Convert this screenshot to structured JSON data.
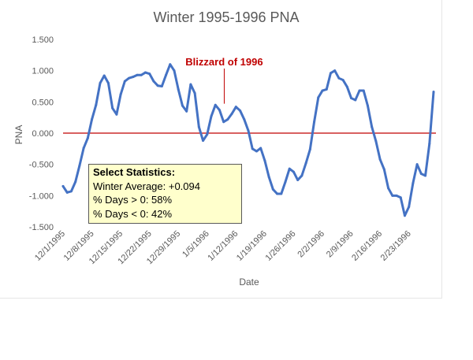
{
  "chart_data": {
    "type": "line",
    "title": "Winter 1995-1996 PNA",
    "xlabel": "Date",
    "ylabel": "PNA",
    "ylim": [
      -1.5,
      1.5
    ],
    "yticks": [
      "1.500",
      "1.000",
      "0.500",
      "0.000",
      "-0.500",
      "-1.000",
      "-1.500"
    ],
    "xticks": [
      "12/1/1995",
      "12/8/1995",
      "12/15/1995",
      "12/22/1995",
      "12/29/1995",
      "1/5/1996",
      "1/12/1996",
      "1/19/1996",
      "1/26/1996",
      "2/2/1996",
      "2/9/1996",
      "2/16/1996",
      "2/23/1996"
    ],
    "grid": "none",
    "reference_line": {
      "y": 0,
      "color": "#c00000"
    },
    "series": [
      {
        "color": "#4472c4",
        "x": [
          "12/1/1995",
          "12/2/1995",
          "12/3/1995",
          "12/4/1995",
          "12/5/1995",
          "12/6/1995",
          "12/7/1995",
          "12/8/1995",
          "12/9/1995",
          "12/10/1995",
          "12/11/1995",
          "12/12/1995",
          "12/13/1995",
          "12/14/1995",
          "12/15/1995",
          "12/16/1995",
          "12/17/1995",
          "12/18/1995",
          "12/19/1995",
          "12/20/1995",
          "12/21/1995",
          "12/22/1995",
          "12/23/1995",
          "12/24/1995",
          "12/25/1995",
          "12/26/1995",
          "12/27/1995",
          "12/28/1995",
          "12/29/1995",
          "12/30/1995",
          "12/31/1995",
          "1/1/1996",
          "1/2/1996",
          "1/3/1996",
          "1/4/1996",
          "1/5/1996",
          "1/6/1996",
          "1/7/1996",
          "1/8/1996",
          "1/9/1996",
          "1/10/1996",
          "1/11/1996",
          "1/12/1996",
          "1/13/1996",
          "1/14/1996",
          "1/15/1996",
          "1/16/1996",
          "1/17/1996",
          "1/18/1996",
          "1/19/1996",
          "1/20/1996",
          "1/21/1996",
          "1/22/1996",
          "1/23/1996",
          "1/24/1996",
          "1/25/1996",
          "1/26/1996",
          "1/27/1996",
          "1/28/1996",
          "1/29/1996",
          "1/30/1996",
          "1/31/1996",
          "2/1/1996",
          "2/2/1996",
          "2/3/1996",
          "2/4/1996",
          "2/5/1996",
          "2/6/1996",
          "2/7/1996",
          "2/8/1996",
          "2/9/1996",
          "2/10/1996",
          "2/11/1996",
          "2/12/1996",
          "2/13/1996",
          "2/14/1996",
          "2/15/1996",
          "2/16/1996",
          "2/17/1996",
          "2/18/1996",
          "2/19/1996",
          "2/20/1996",
          "2/21/1996",
          "2/22/1996",
          "2/23/1996",
          "2/24/1996",
          "2/25/1996",
          "2/26/1996",
          "2/27/1996",
          "2/28/1996",
          "2/29/1996"
        ],
        "values": [
          -0.85,
          -0.95,
          -0.93,
          -0.78,
          -0.52,
          -0.24,
          -0.08,
          0.22,
          0.45,
          0.8,
          0.92,
          0.8,
          0.4,
          0.3,
          0.62,
          0.83,
          0.88,
          0.9,
          0.93,
          0.93,
          0.97,
          0.95,
          0.83,
          0.76,
          0.75,
          0.93,
          1.1,
          1.0,
          0.7,
          0.44,
          0.35,
          0.78,
          0.64,
          0.1,
          -0.12,
          -0.02,
          0.27,
          0.45,
          0.37,
          0.18,
          0.22,
          0.31,
          0.42,
          0.36,
          0.22,
          0.04,
          -0.25,
          -0.29,
          -0.24,
          -0.44,
          -0.7,
          -0.9,
          -0.97,
          -0.97,
          -0.78,
          -0.57,
          -0.62,
          -0.75,
          -0.68,
          -0.48,
          -0.26,
          0.18,
          0.57,
          0.68,
          0.7,
          0.96,
          1.0,
          0.88,
          0.85,
          0.74,
          0.56,
          0.53,
          0.68,
          0.68,
          0.44,
          0.1,
          -0.13,
          -0.42,
          -0.58,
          -0.88,
          -1.0,
          -1.0,
          -1.03,
          -1.32,
          -1.18,
          -0.8,
          -0.5,
          -0.65,
          -0.68,
          -0.17,
          0.66
        ]
      }
    ],
    "annotations": [
      {
        "text": "Blizzard of 1996",
        "x": "1/8/1996"
      }
    ],
    "stats_box": {
      "header": "Select Statistics:",
      "lines": [
        "Winter Average: +0.094",
        "% Days > 0: 58%",
        "% Days < 0: 42%"
      ]
    }
  }
}
